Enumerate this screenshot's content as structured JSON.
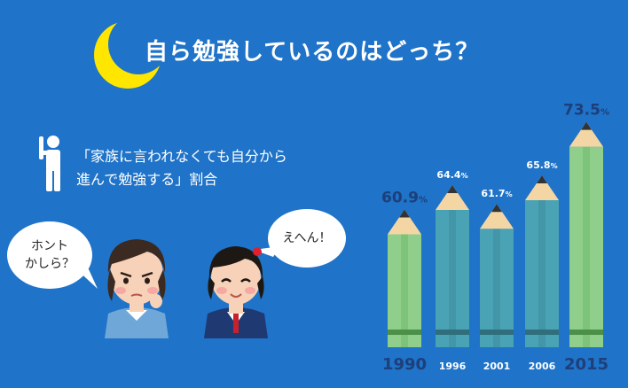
{
  "header": {
    "title": "自ら勉強しているのはどっち？"
  },
  "description": {
    "line1": "「家族に言われなくても自分から",
    "line2": "進んで勉強する」割合"
  },
  "bubbles": {
    "left": "ホント\nかしら？",
    "right": "えへん！"
  },
  "icons": {
    "moon": "crescent-moon-icon",
    "person": "person-raising-hand-icon"
  },
  "colors": {
    "background": "#1f73c8",
    "moon": "#ffe600",
    "pencil_highlight": "#8fcf8b",
    "pencil_normal": "#4aa3b4",
    "label_highlight": "#1d3f7a",
    "label_normal": "#ffffff"
  },
  "chart_data": {
    "type": "bar",
    "style": "pencil",
    "categories": [
      "1990",
      "1996",
      "2001",
      "2006",
      "2015"
    ],
    "values": [
      60.9,
      64.4,
      61.7,
      65.8,
      73.5
    ],
    "value_labels": [
      "60.9",
      "64.4",
      "61.7",
      "65.8",
      "73.5"
    ],
    "unit": "%",
    "highlight": [
      "1990",
      "2015"
    ],
    "grid": false,
    "legend": "none"
  }
}
